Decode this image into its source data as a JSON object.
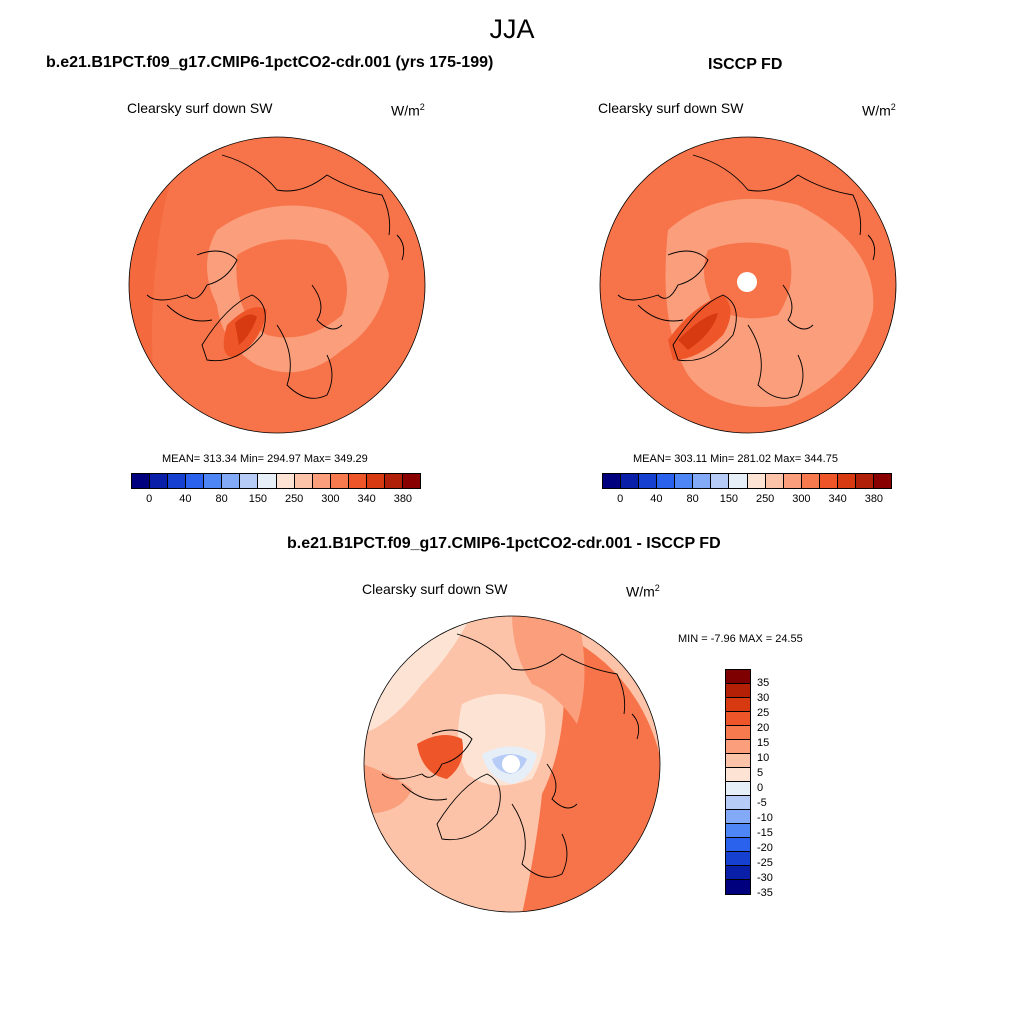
{
  "season": "JJA",
  "panels": {
    "model": {
      "title": "b.e21.B1PCT.f09_g17.CMIP6-1pctCO2-cdr.001 (yrs 175-199)",
      "variable": "Clearsky surf down SW",
      "units_base": "W/m",
      "units_exp": "2",
      "mean": "313.34",
      "min": "294.97",
      "max": "349.29",
      "stats": "MEAN= 313.34  Min= 294.97  Max= 349.29"
    },
    "obs": {
      "title": "ISCCP FD",
      "variable": "Clearsky surf down SW",
      "units_base": "W/m",
      "units_exp": "2",
      "mean": "303.11",
      "min": "281.02",
      "max": "344.75",
      "stats": "MEAN= 303.11  Min= 281.02  Max= 344.75"
    },
    "diff": {
      "title": "b.e21.B1PCT.f09_g17.CMIP6-1pctCO2-cdr.001 - ISCCP FD",
      "variable": "Clearsky surf down SW",
      "units_base": "W/m",
      "units_exp": "2",
      "min": "-7.96",
      "max": "24.55",
      "stats": "MIN =  -7.96 MAX =  24.55"
    }
  },
  "abs_colorbar": {
    "labels": [
      "0",
      "40",
      "80",
      "150",
      "250",
      "300",
      "340",
      "380"
    ],
    "colors": [
      "#00007f",
      "#0a1fa8",
      "#1540d0",
      "#2a62ee",
      "#4f86f5",
      "#82aaf7",
      "#b6ccf6",
      "#e6eef8",
      "#fde3d4",
      "#fcc3a8",
      "#fa9e7c",
      "#f77a4e",
      "#ee5528",
      "#d73a10",
      "#b02008",
      "#880000"
    ]
  },
  "diff_colorbar": {
    "labels": [
      "35",
      "30",
      "25",
      "20",
      "15",
      "10",
      "5",
      "0",
      "-5",
      "-10",
      "-15",
      "-20",
      "-25",
      "-30",
      "-35"
    ],
    "colors": [
      "#7f0000",
      "#b42006",
      "#d73a10",
      "#ee5528",
      "#f77a4e",
      "#fa9e7c",
      "#fcc3a8",
      "#fde3d4",
      "#e6eef8",
      "#b6ccf6",
      "#82aaf7",
      "#4f86f5",
      "#2a62ee",
      "#1540d0",
      "#0a1fa8",
      "#00007f"
    ]
  },
  "map_colors": {
    "orange": "#f7744a",
    "light_orange": "#fa9e7c",
    "peach": "#fcc3a8",
    "dark_orange": "#ee5528",
    "red": "#d73a10",
    "cream": "#fde3d4",
    "pale_blue": "#e6eef8",
    "light_blue": "#b6ccf6"
  }
}
